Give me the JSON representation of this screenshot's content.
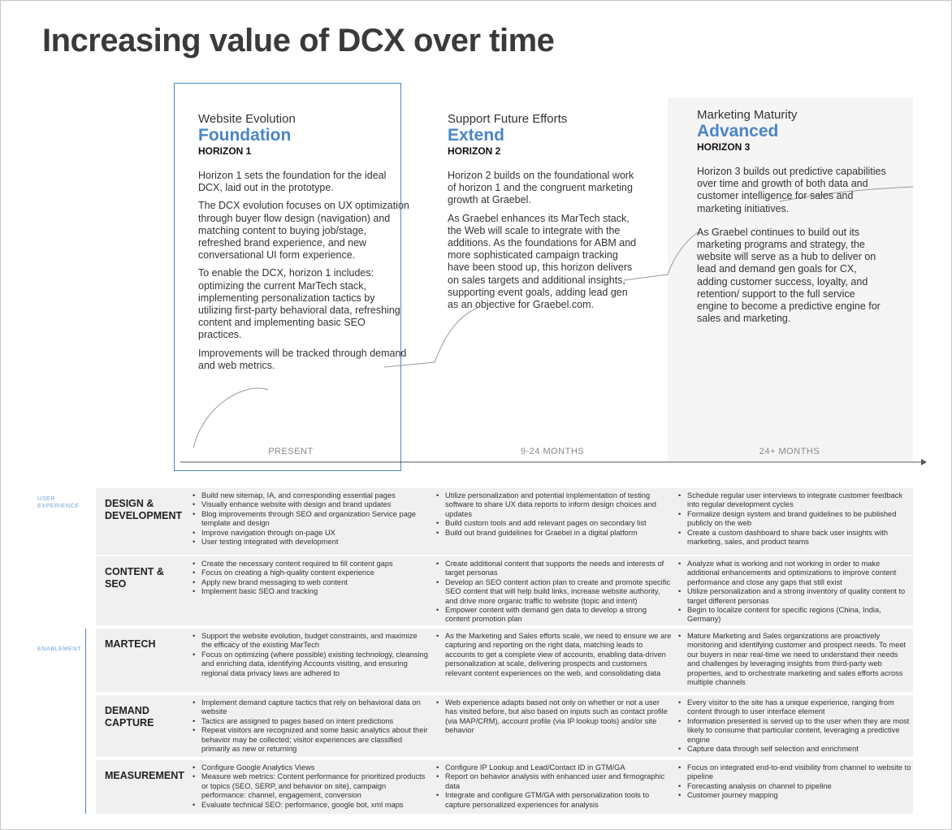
{
  "title": "Increasing value of DCX over time",
  "colors": {
    "accent": "#4a86c5"
  },
  "horizons": [
    {
      "subtitle": "Website Evolution",
      "name": "Foundation",
      "tag": "HORIZON 1",
      "paragraphs": [
        "Horizon 1 sets the foundation for the ideal DCX, laid out in the prototype.",
        "The DCX evolution focuses on UX optimization through buyer flow design (navigation) and matching content to buying job/stage, refreshed brand experience, and new conversational UI form experience.",
        "To enable the DCX, horizon 1 includes: optimizing the current MarTech stack, implementing personalization tactics by utilizing first-party behavioral data, refreshing content and implementing basic SEO practices.",
        "Improvements will be tracked through demand and web metrics."
      ],
      "time": "PRESENT"
    },
    {
      "subtitle": "Support Future Efforts",
      "name": "Extend",
      "tag": "HORIZON 2",
      "paragraphs": [
        "Horizon 2 builds on the foundational work of horizon 1 and the congruent marketing growth at Graebel.",
        "As Graebel enhances its MarTech stack, the Web will scale to integrate with the additions. As the foundations for ABM and more sophisticated campaign tracking have been stood up, this horizon delivers on sales targets and additional insights, supporting event goals, adding lead gen as an objective for Graebel.com."
      ],
      "time": "9-24 MONTHS"
    },
    {
      "subtitle": "Marketing Maturity",
      "name": "Advanced",
      "tag": "HORIZON 3",
      "paragraphs": [
        "Horizon 3 builds out predictive capabilities over time and growth of both data and customer intelligence for sales and marketing initiatives.",
        "As Graebel continues to build out its marketing programs and strategy, the website will serve as a hub to deliver on lead and demand gen goals for CX, adding customer success, loyalty, and retention/ support to the full service engine to become a predictive engine for sales and marketing."
      ],
      "time": "24+ MONTHS"
    }
  ],
  "side_labels": {
    "user_experience": [
      "USER",
      "EXPERIENCE"
    ],
    "enablement": "ENABLEMENT"
  },
  "rows": [
    {
      "label": [
        "DESIGN &",
        "DEVELOPMENT"
      ],
      "cols": [
        [
          "Build new sitemap, IA, and corresponding essential pages",
          "Visually enhance website with design and brand updates",
          "Blog improvements through SEO and organization Service page template and design",
          "Improve navigation through on-page UX",
          "User testing integrated with development"
        ],
        [
          "Utilize personalization and potential implementation of testing software to share UX data reports to inform design choices and updates",
          "Build custom tools and add relevant pages on secondary list",
          "Build out brand guidelines for Graebel in a digital platform"
        ],
        [
          "Schedule regular user interviews to integrate customer feedback into regular development cycles",
          "Formalize design system and brand guidelines to be published publicly on the web",
          "Create a custom dashboard to share back user insights with marketing, sales, and product teams"
        ]
      ]
    },
    {
      "label": [
        "CONTENT &",
        "SEO"
      ],
      "cols": [
        [
          "Create the necessary content required to fill content gaps",
          "Focus on creating a high-quality content experience",
          "Apply new brand messaging to web content",
          "Implement basic SEO and tracking"
        ],
        [
          "Create additional content that supports the needs and interests of target personas",
          "Develop an SEO content action plan to create and promote specific SEO content that will help build links, increase website authority, and drive more organic traffic to website (topic and intent)",
          "Empower content with demand gen data to develop a strong content promotion plan"
        ],
        [
          "Analyze what is working and not working in order to make additional enhancements and optimizations to improve content performance and close any gaps that still exist",
          "Utilize personalization and a strong inventory of quality content to target different personas",
          "Begin to localize content for specific regions (China, India, Germany)"
        ]
      ]
    },
    {
      "label": [
        "MARTECH"
      ],
      "cols": [
        [
          "Support the website evolution, budget constraints, and maximize the efficacy of the existing MarTech",
          "Focus on optimizing (where possible) existing technology, cleansing and enriching data, identifying Accounts visiting, and ensuring regional data privacy laws are adhered to"
        ],
        [
          "As the Marketing and Sales efforts scale, we need to ensure we are capturing and reporting on the right data, matching leads to accounts to get a complete view of accounts, enabling data-driven personalization at scale, delivering prospects and customers relevant content experiences on the web, and consolidating data"
        ],
        [
          "Mature Marketing and Sales organizations are proactively monitoring and identifying customer and prospect needs. To meet our buyers in near real-time we need to understand their needs and challenges by leveraging insights from third-party web properties, and to orchestrate marketing and sales efforts across multiple channels"
        ]
      ]
    },
    {
      "label": [
        "DEMAND",
        "CAPTURE"
      ],
      "cols": [
        [
          "Implement demand capture tactics that rely on behavioral data on website",
          "Tactics are assigned to pages based on intent predictions",
          "Repeat visitors are recognized and some basic analytics about their behavior may be collected; visitor experiences are classified primarily as new or returning"
        ],
        [
          "Web experience adapts based not only on whether or not a user has visited before, but also based on inputs such as contact profile (via MAP/CRM), account profile (via IP lookup tools) and/or site behavior"
        ],
        [
          "Every visitor to the site has a unique experience, ranging from content through to user interface element",
          "Information presented is served up to the user when they are most likely to consume that particular content, leveraging a predictive engine",
          "Capture data through self selection and enrichment"
        ]
      ]
    },
    {
      "label": [
        "MEASUREMENT"
      ],
      "cols": [
        [
          "Configure Google Analytics Views",
          "Measure web metrics: Content performance for prioritized products or topics (SEO, SERP, and behavior on site), campaign performance: channel, engagement, conversion",
          "Evaluate technical SEO: performance, google bot, xml maps"
        ],
        [
          "Configure IP Lookup and Lead/Contact ID in GTM/GA",
          "Report on behavior analysis with enhanced user and firmographic data",
          "Integrate and configure GTM/GA with personalization tools to capture personalized experiences for analysis"
        ],
        [
          "Focus on integrated end-to-end visibility from channel to website to pipeline",
          "Forecasting analysis on channel to pipeline",
          "Customer journey mapping"
        ]
      ]
    }
  ]
}
